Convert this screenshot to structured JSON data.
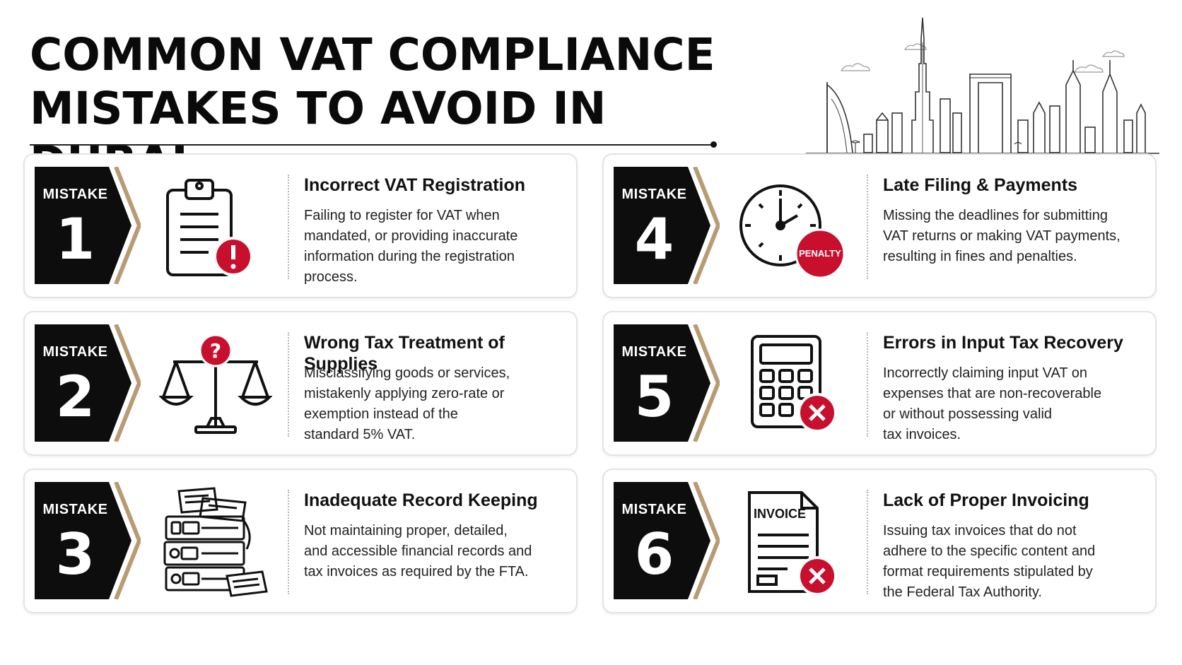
{
  "header": {
    "title_line1": "COMMON VAT COMPLIANCE",
    "title_line2": "MISTAKES TO AVOID IN DUBAI"
  },
  "colors": {
    "badge_bg": "#0d0d0d",
    "badge_accent": "#b89b72",
    "alert_red": "#c8102e",
    "text_dark": "#111111",
    "card_border": "#e3e3e3"
  },
  "mistakes": [
    {
      "label": "MISTAKE",
      "number": "1",
      "title": "Incorrect VAT Registration",
      "description": "Failing to register for VAT when\nmandated, or providing inaccurate\ninformation during the registration\nprocess.",
      "icon": "clipboard-alert-icon"
    },
    {
      "label": "MISTAKE",
      "number": "2",
      "title": "Wrong Tax Treatment of Supplies",
      "description": "Misclassifying goods or services,\nmistakenly applying zero-rate or\nexemption instead of the\nstandard 5% VAT.",
      "icon": "scales-question-icon"
    },
    {
      "label": "MISTAKE",
      "number": "3",
      "title": "Inadequate Record Keeping",
      "description": "Not maintaining proper, detailed,\nand accessible financial records and\ntax invoices as required by the FTA.",
      "icon": "messy-files-icon"
    },
    {
      "label": "MISTAKE",
      "number": "4",
      "title": "Late Filing & Payments",
      "description": "Missing the deadlines for submitting\nVAT returns or making VAT payments,\nresulting in fines and penalties.",
      "icon": "clock-penalty-icon",
      "icon_text": "PENALTY"
    },
    {
      "label": "MISTAKE",
      "number": "5",
      "title": "Errors in Input Tax Recovery",
      "description": "Incorrectly claiming input VAT on\nexpenses that are non-recoverable\nor without possessing valid\ntax invoices.",
      "icon": "calculator-error-icon"
    },
    {
      "label": "MISTAKE",
      "number": "6",
      "title": "Lack of Proper Invoicing",
      "description": "Issuing tax invoices that do not\nadhere to the specific content and\nformat requirements stipulated by\nthe Federal Tax Authority.",
      "icon": "invoice-error-icon",
      "icon_text": "INVOICE"
    }
  ]
}
